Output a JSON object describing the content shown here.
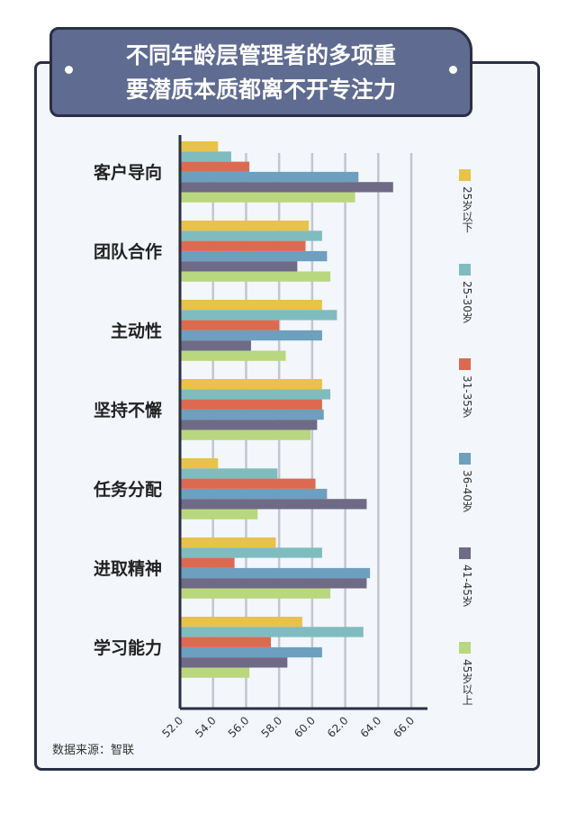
{
  "chart_data": {
    "type": "bar",
    "title": "不同年龄层管理者的多项重要潜质本质都离不开专注力",
    "title_lines": [
      "不同年龄层管理者的多项重",
      "要潜质本质都离不开专注力"
    ],
    "orientation": "horizontal",
    "categories": [
      "客户导向",
      "团队合作",
      "主动性",
      "坚持不懈",
      "任务分配",
      "进取精神",
      "学习能力"
    ],
    "xlim": [
      52,
      66
    ],
    "ticks": [
      "52.0",
      "54.0",
      "56.0",
      "58.0",
      "60.0",
      "62.0",
      "64.0",
      "66.0"
    ],
    "grid": true,
    "legend_position": "right",
    "series": [
      {
        "name": "25岁以下",
        "color": "#e8c24a",
        "values": [
          54.3,
          59.8,
          60.6,
          60.6,
          54.3,
          57.8,
          59.4
        ]
      },
      {
        "name": "25-30岁",
        "color": "#7fbcbf",
        "values": [
          55.1,
          60.6,
          61.5,
          61.1,
          57.9,
          60.6,
          63.1
        ]
      },
      {
        "name": "31-35岁",
        "color": "#dc6a50",
        "values": [
          56.2,
          59.6,
          58.0,
          60.6,
          60.2,
          55.3,
          57.5
        ]
      },
      {
        "name": "36-40岁",
        "color": "#6d9fbf",
        "values": [
          62.8,
          60.9,
          60.6,
          60.7,
          60.9,
          63.5,
          60.6
        ]
      },
      {
        "name": "41-45岁",
        "color": "#6f6a86",
        "values": [
          64.9,
          59.1,
          56.3,
          60.3,
          63.3,
          63.3,
          58.5
        ]
      },
      {
        "name": "45岁以上",
        "color": "#b9d77e",
        "values": [
          62.6,
          61.1,
          58.4,
          59.9,
          56.7,
          61.1,
          56.2
        ]
      }
    ]
  },
  "source": "数据来源：智联"
}
